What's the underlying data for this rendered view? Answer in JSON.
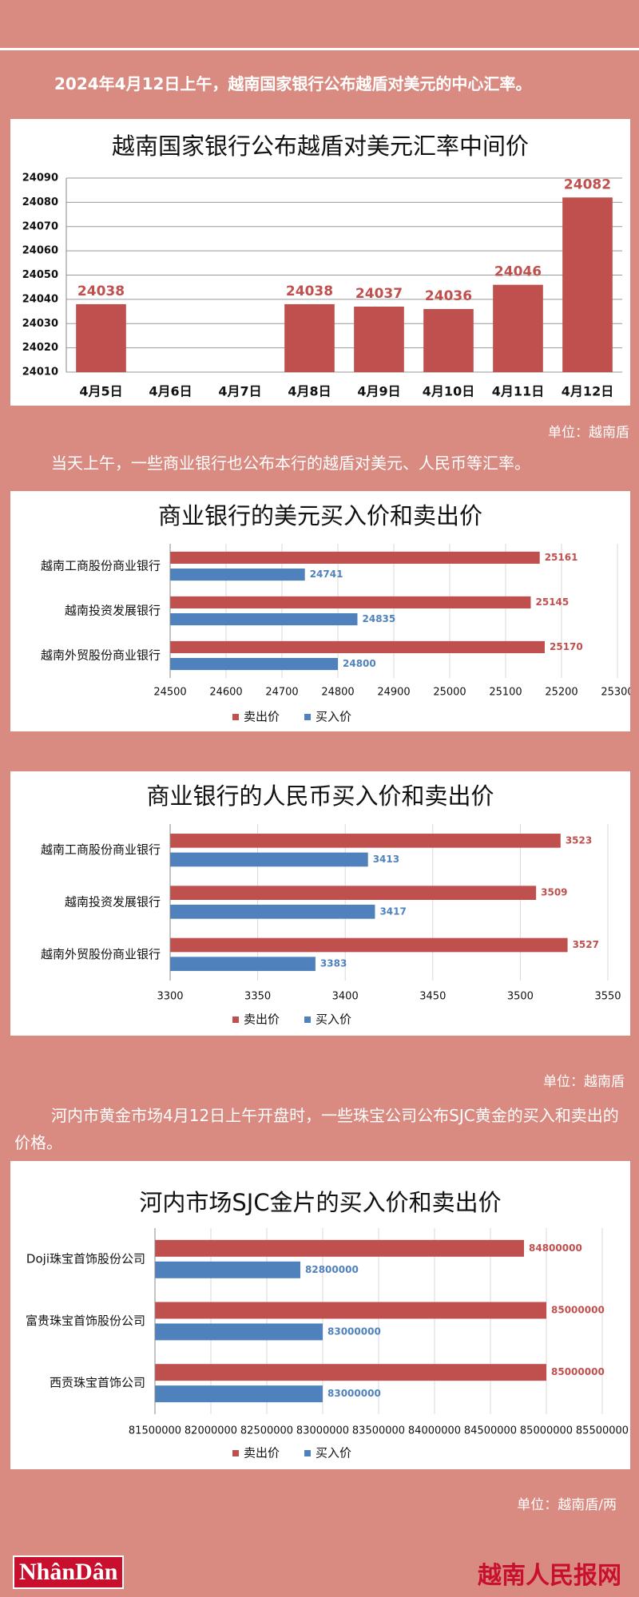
{
  "intro": "2024年4月12日上午，越南国家银行公布越盾对美元的中心汇率。",
  "unit_1": "单位：越南盾",
  "text_2": "当天上午，一些商业银行也公布本行的越盾对美元、人民币等汇率。",
  "unit_2": "单位：越南盾",
  "text_3": "河内市黄金市场4月12日上午开盘时，一些珠宝公司公布SJC黄金的买入和卖出的价格。",
  "unit_3": "单位：越南盾/两",
  "footer": {
    "logo": "NhânDân",
    "site": "越南人民报网"
  },
  "chart_data": [
    {
      "type": "bar",
      "title": "越南国家银行公布越盾对美元汇率中间价",
      "categories": [
        "4月5日",
        "4月6日",
        "4月7日",
        "4月8日",
        "4月9日",
        "4月10日",
        "4月11日",
        "4月12日"
      ],
      "values": [
        24038,
        null,
        null,
        24038,
        24037,
        24036,
        24046,
        24082
      ],
      "color": "#c0504d",
      "ylim": [
        24010,
        24090
      ],
      "yticks": [
        24010,
        24020,
        24030,
        24040,
        24050,
        24060,
        24070,
        24080,
        24090
      ],
      "grid": true
    },
    {
      "type": "bar",
      "orientation": "horizontal",
      "title": "商业银行的美元买入价和卖出价",
      "categories": [
        "越南工商股份商业银行",
        "越南投资发展银行",
        "越南外贸股份商业银行"
      ],
      "series": [
        {
          "name": "卖出价",
          "color": "#c0504d",
          "values": [
            25161,
            25145,
            25170
          ]
        },
        {
          "name": "买入价",
          "color": "#4f81bd",
          "values": [
            24741,
            24835,
            24800
          ]
        }
      ],
      "xlim": [
        24500,
        25300
      ],
      "xticks": [
        24500,
        24600,
        24700,
        24800,
        24900,
        25000,
        25100,
        25200,
        25300
      ],
      "grid": true,
      "legend": "bottom"
    },
    {
      "type": "bar",
      "orientation": "horizontal",
      "title": "商业银行的人民币买入价和卖出价",
      "categories": [
        "越南工商股份商业银行",
        "越南投资发展银行",
        "越南外贸股份商业银行"
      ],
      "series": [
        {
          "name": "卖出价",
          "color": "#c0504d",
          "values": [
            3523,
            3509,
            3527
          ]
        },
        {
          "name": "买入价",
          "color": "#4f81bd",
          "values": [
            3413,
            3417,
            3383
          ]
        }
      ],
      "xlim": [
        3300,
        3550
      ],
      "xticks": [
        3300,
        3350,
        3400,
        3450,
        3500,
        3550
      ],
      "grid": true,
      "legend": "bottom"
    },
    {
      "type": "bar",
      "orientation": "horizontal",
      "title": "河内市场SJC金片的买入价和卖出价",
      "categories": [
        "Doji珠宝首饰股份公司",
        "富贵珠宝首饰股份公司",
        "西贡珠宝首饰公司"
      ],
      "series": [
        {
          "name": "卖出价",
          "color": "#c0504d",
          "values": [
            84800000,
            85000000,
            85000000
          ]
        },
        {
          "name": "买入价",
          "color": "#4f81bd",
          "values": [
            82800000,
            83000000,
            83000000
          ]
        }
      ],
      "xlim": [
        81500000,
        85500000
      ],
      "xticks": [
        81500000,
        82000000,
        82500000,
        83000000,
        83500000,
        84000000,
        84500000,
        85000000,
        85500000
      ],
      "grid": true,
      "legend": "bottom"
    }
  ]
}
